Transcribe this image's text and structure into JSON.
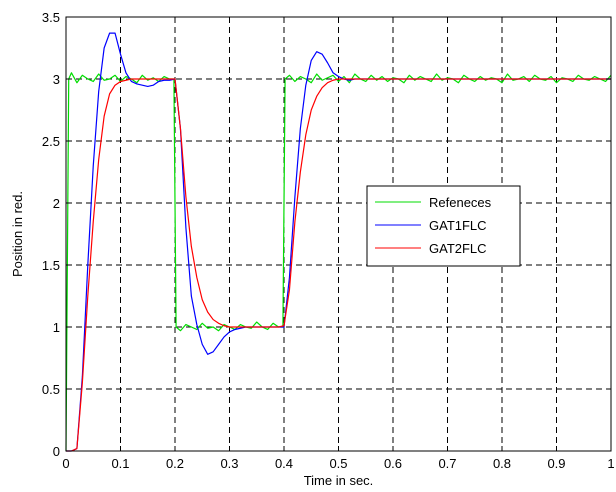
{
  "chart_data": {
    "type": "line",
    "title": "",
    "xlabel": "Time in sec.",
    "ylabel": "Position in red.",
    "xlim": [
      0,
      1
    ],
    "ylim": [
      0,
      3.5
    ],
    "xticks": [
      0,
      0.1,
      0.2,
      0.3,
      0.4,
      0.5,
      0.6,
      0.7,
      0.8,
      0.9,
      1
    ],
    "xtick_labels": [
      "0",
      "0.1",
      "0.2",
      "0.3",
      "0.4",
      "0.5",
      "0.6",
      "0.7",
      "0.8",
      "0.9",
      "1"
    ],
    "yticks": [
      0,
      0.5,
      1,
      1.5,
      2,
      2.5,
      3,
      3.5
    ],
    "ytick_labels": [
      "0",
      "0.5",
      "1",
      "1.5",
      "2",
      "2.5",
      "3",
      "3.5"
    ],
    "grid": true,
    "legend_position": "middle-right",
    "series": [
      {
        "name": "Refeneces",
        "color": "#00dd00",
        "x": [
          0,
          0.005,
          0.01,
          0.02,
          0.03,
          0.04,
          0.05,
          0.06,
          0.07,
          0.08,
          0.09,
          0.1,
          0.11,
          0.12,
          0.13,
          0.14,
          0.15,
          0.16,
          0.17,
          0.18,
          0.19,
          0.198,
          0.202,
          0.21,
          0.22,
          0.23,
          0.24,
          0.25,
          0.26,
          0.27,
          0.28,
          0.29,
          0.3,
          0.31,
          0.32,
          0.33,
          0.34,
          0.35,
          0.36,
          0.37,
          0.38,
          0.39,
          0.398,
          0.402,
          0.41,
          0.42,
          0.43,
          0.44,
          0.45,
          0.46,
          0.47,
          0.48,
          0.49,
          0.5,
          0.51,
          0.52,
          0.53,
          0.54,
          0.55,
          0.56,
          0.57,
          0.58,
          0.59,
          0.6,
          0.61,
          0.62,
          0.63,
          0.64,
          0.65,
          0.66,
          0.67,
          0.68,
          0.69,
          0.7,
          0.71,
          0.72,
          0.73,
          0.74,
          0.75,
          0.76,
          0.77,
          0.78,
          0.79,
          0.8,
          0.81,
          0.82,
          0.83,
          0.84,
          0.85,
          0.86,
          0.87,
          0.88,
          0.89,
          0.9,
          0.91,
          0.92,
          0.93,
          0.94,
          0.95,
          0.96,
          0.97,
          0.98,
          0.99,
          1.0
        ],
        "y": [
          0,
          3.0,
          3.05,
          2.97,
          3.03,
          3.0,
          2.98,
          3.04,
          2.99,
          3.0,
          3.03,
          2.98,
          3.02,
          3.0,
          2.97,
          3.03,
          2.99,
          3.01,
          2.98,
          3.02,
          3.0,
          3.0,
          1.0,
          0.97,
          1.02,
          1.0,
          0.98,
          1.03,
          0.99,
          1.0,
          0.97,
          1.02,
          1.0,
          0.98,
          1.02,
          1.0,
          0.99,
          1.04,
          1.0,
          0.98,
          1.03,
          1.0,
          1.0,
          3.0,
          3.03,
          2.98,
          3.02,
          3.0,
          2.97,
          3.04,
          2.99,
          3.01,
          3.03,
          2.98,
          3.02,
          2.97,
          3.04,
          3.0,
          2.98,
          3.03,
          2.99,
          3.02,
          2.98,
          3.01,
          3.0,
          2.97,
          3.03,
          2.99,
          3.02,
          3.0,
          2.98,
          3.04,
          2.99,
          3.01,
          3.0,
          2.97,
          3.03,
          3.0,
          2.98,
          3.02,
          2.99,
          3.01,
          3.0,
          2.97,
          3.04,
          2.99,
          3.0,
          3.02,
          2.98,
          3.03,
          3.0,
          2.99,
          3.02,
          2.97,
          3.01,
          3.0,
          2.98,
          3.03,
          3.0,
          2.99,
          3.02,
          3.0,
          2.98,
          3.03
        ]
      },
      {
        "name": "GAT1FLC",
        "color": "#0000ff",
        "x": [
          0,
          0.01,
          0.02,
          0.03,
          0.04,
          0.05,
          0.06,
          0.07,
          0.08,
          0.09,
          0.1,
          0.11,
          0.12,
          0.13,
          0.14,
          0.15,
          0.16,
          0.17,
          0.18,
          0.19,
          0.2,
          0.21,
          0.22,
          0.23,
          0.24,
          0.25,
          0.26,
          0.27,
          0.28,
          0.29,
          0.3,
          0.31,
          0.32,
          0.33,
          0.34,
          0.35,
          0.36,
          0.37,
          0.38,
          0.39,
          0.4,
          0.41,
          0.42,
          0.43,
          0.44,
          0.45,
          0.46,
          0.47,
          0.48,
          0.49,
          0.5,
          0.51,
          0.52,
          0.53,
          0.54,
          0.55,
          0.6,
          0.65,
          0.7,
          0.75,
          0.8,
          0.85,
          0.9,
          0.95,
          1.0
        ],
        "y": [
          0,
          0,
          0.02,
          0.6,
          1.5,
          2.3,
          2.9,
          3.25,
          3.37,
          3.37,
          3.2,
          3.05,
          2.98,
          2.96,
          2.95,
          2.94,
          2.95,
          2.98,
          2.99,
          2.99,
          3.0,
          2.6,
          1.8,
          1.25,
          1.02,
          0.86,
          0.78,
          0.8,
          0.86,
          0.92,
          0.96,
          0.98,
          0.99,
          1.0,
          1.0,
          1.0,
          1.0,
          1.0,
          1.0,
          1.0,
          1.0,
          1.4,
          2.05,
          2.6,
          2.95,
          3.15,
          3.22,
          3.2,
          3.13,
          3.05,
          3.02,
          3.0,
          2.99,
          3.0,
          3.0,
          3.0,
          3.0,
          3.0,
          3.0,
          3.0,
          3.0,
          3.0,
          3.0,
          3.0,
          3.0
        ]
      },
      {
        "name": "GAT2FLC",
        "color": "#ff0000",
        "x": [
          0,
          0.01,
          0.02,
          0.03,
          0.04,
          0.05,
          0.06,
          0.07,
          0.08,
          0.09,
          0.1,
          0.11,
          0.12,
          0.13,
          0.14,
          0.15,
          0.16,
          0.17,
          0.18,
          0.19,
          0.2,
          0.21,
          0.22,
          0.23,
          0.24,
          0.25,
          0.26,
          0.27,
          0.28,
          0.29,
          0.3,
          0.31,
          0.32,
          0.33,
          0.34,
          0.35,
          0.36,
          0.37,
          0.38,
          0.39,
          0.4,
          0.41,
          0.42,
          0.43,
          0.44,
          0.45,
          0.46,
          0.47,
          0.48,
          0.49,
          0.5,
          0.51,
          0.52,
          0.55,
          0.6,
          0.65,
          0.7,
          0.75,
          0.8,
          0.85,
          0.9,
          0.95,
          1.0
        ],
        "y": [
          0,
          0,
          0.02,
          0.55,
          1.25,
          1.85,
          2.35,
          2.7,
          2.88,
          2.95,
          2.98,
          2.99,
          3.0,
          3.0,
          3.0,
          3.0,
          3.0,
          3.0,
          3.0,
          3.0,
          3.0,
          2.6,
          2.05,
          1.65,
          1.4,
          1.22,
          1.12,
          1.06,
          1.03,
          1.01,
          1.0,
          1.0,
          1.0,
          1.0,
          1.0,
          1.0,
          1.0,
          1.0,
          1.0,
          1.0,
          1.01,
          1.3,
          1.85,
          2.25,
          2.55,
          2.75,
          2.86,
          2.93,
          2.97,
          2.99,
          3.0,
          3.0,
          3.0,
          3.0,
          3.0,
          3.0,
          3.0,
          3.0,
          3.0,
          3.0,
          3.0,
          3.0,
          3.0
        ]
      }
    ]
  }
}
